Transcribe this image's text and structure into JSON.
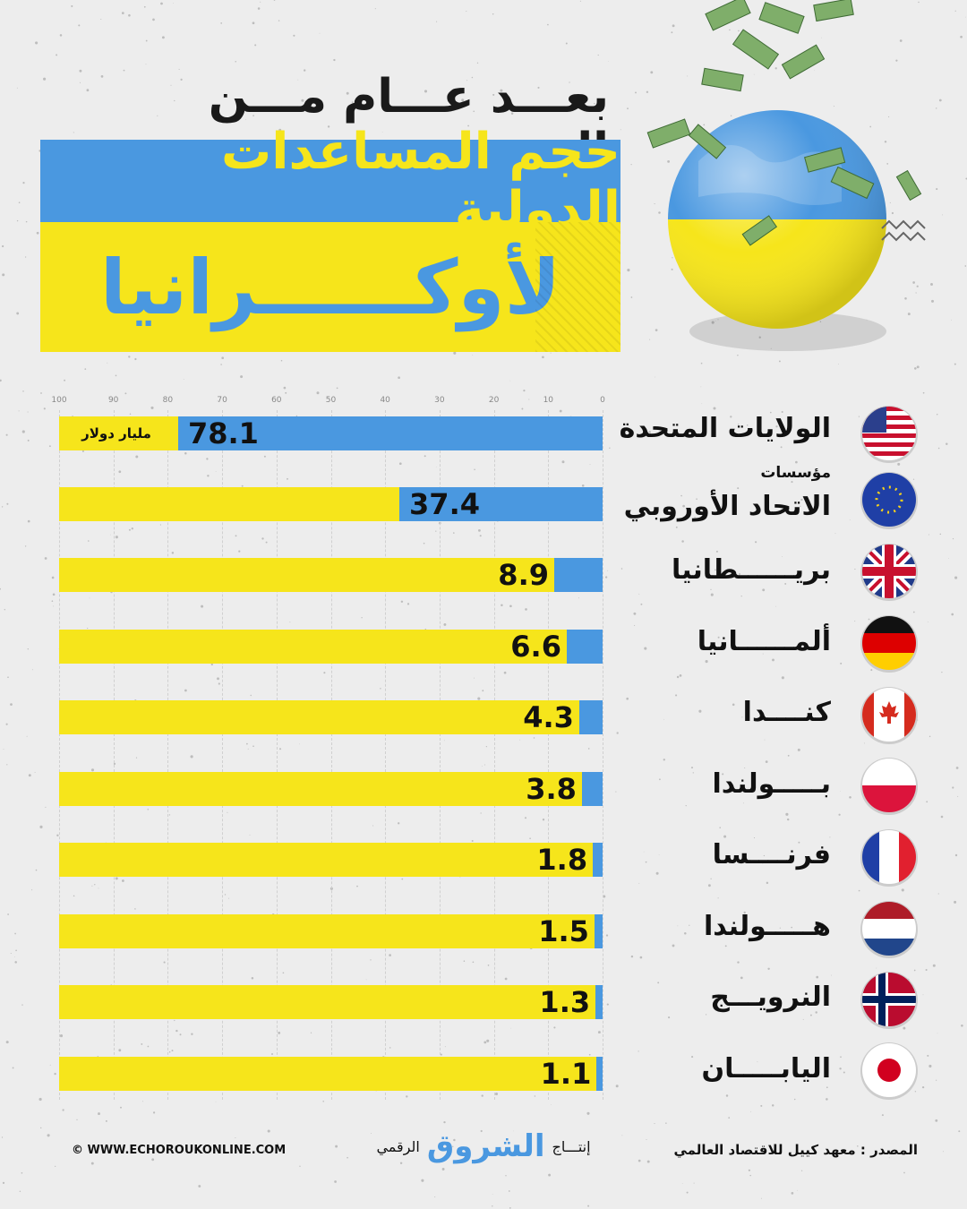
{
  "header": {
    "subtitle": "بعـــد عـــام مـــن الحــــرب",
    "title_line1": "حجم المساعدات الدولية",
    "title_line2": "لأوكــــــرانيا"
  },
  "chart_data": {
    "type": "bar",
    "orientation": "horizontal",
    "direction": "right-to-left",
    "unit_label": "مليار دولار",
    "xlim": [
      0,
      100
    ],
    "ticks": [
      0,
      10,
      20,
      30,
      40,
      50,
      60,
      70,
      80,
      90,
      100
    ],
    "grid": true,
    "categories": [
      {
        "label": "الولايات المتحدة",
        "sublabel": "",
        "value": 78.1,
        "value_text": "78.1"
      },
      {
        "label": "الاتحاد الأوروبي",
        "sublabel": "مؤسسات",
        "value": 37.4,
        "value_text": "37.4"
      },
      {
        "label": "بريــــــطانيا",
        "sublabel": "",
        "value": 8.9,
        "value_text": "8.9"
      },
      {
        "label": "ألمــــــانيا",
        "sublabel": "",
        "value": 6.6,
        "value_text": "6.6"
      },
      {
        "label": "كنــــدا",
        "sublabel": "",
        "value": 4.3,
        "value_text": "4.3"
      },
      {
        "label": "بـــــولندا",
        "sublabel": "",
        "value": 3.8,
        "value_text": "3.8"
      },
      {
        "label": "فرنــــسا",
        "sublabel": "",
        "value": 1.8,
        "value_text": "1.8"
      },
      {
        "label": "هـــــولندا",
        "sublabel": "",
        "value": 1.5,
        "value_text": "1.5"
      },
      {
        "label": "النرويـــج",
        "sublabel": "",
        "value": 1.3,
        "value_text": "1.3"
      },
      {
        "label": "اليابـــــان",
        "sublabel": "",
        "value": 1.1,
        "value_text": "1.1"
      }
    ],
    "colors": {
      "bar_value": "#4a98e0",
      "bar_track": "#f6e51b"
    }
  },
  "flags": [
    "usa-flag-icon",
    "eu-flag-icon",
    "uk-flag-icon",
    "germany-flag-icon",
    "canada-flag-icon",
    "poland-flag-icon",
    "france-flag-icon",
    "netherlands-flag-icon",
    "norway-flag-icon",
    "japan-flag-icon"
  ],
  "footer": {
    "source": "المصدر : معهد كييل للاقتصاد العالمي",
    "production": "إنتـــاج",
    "brand": "الشروق",
    "digital": "الرقمي",
    "website": "© WWW.ECHOROUKONLINE.COM"
  },
  "colors": {
    "blue": "#4a98e0",
    "yellow": "#f6e51b",
    "background": "#ededed"
  }
}
